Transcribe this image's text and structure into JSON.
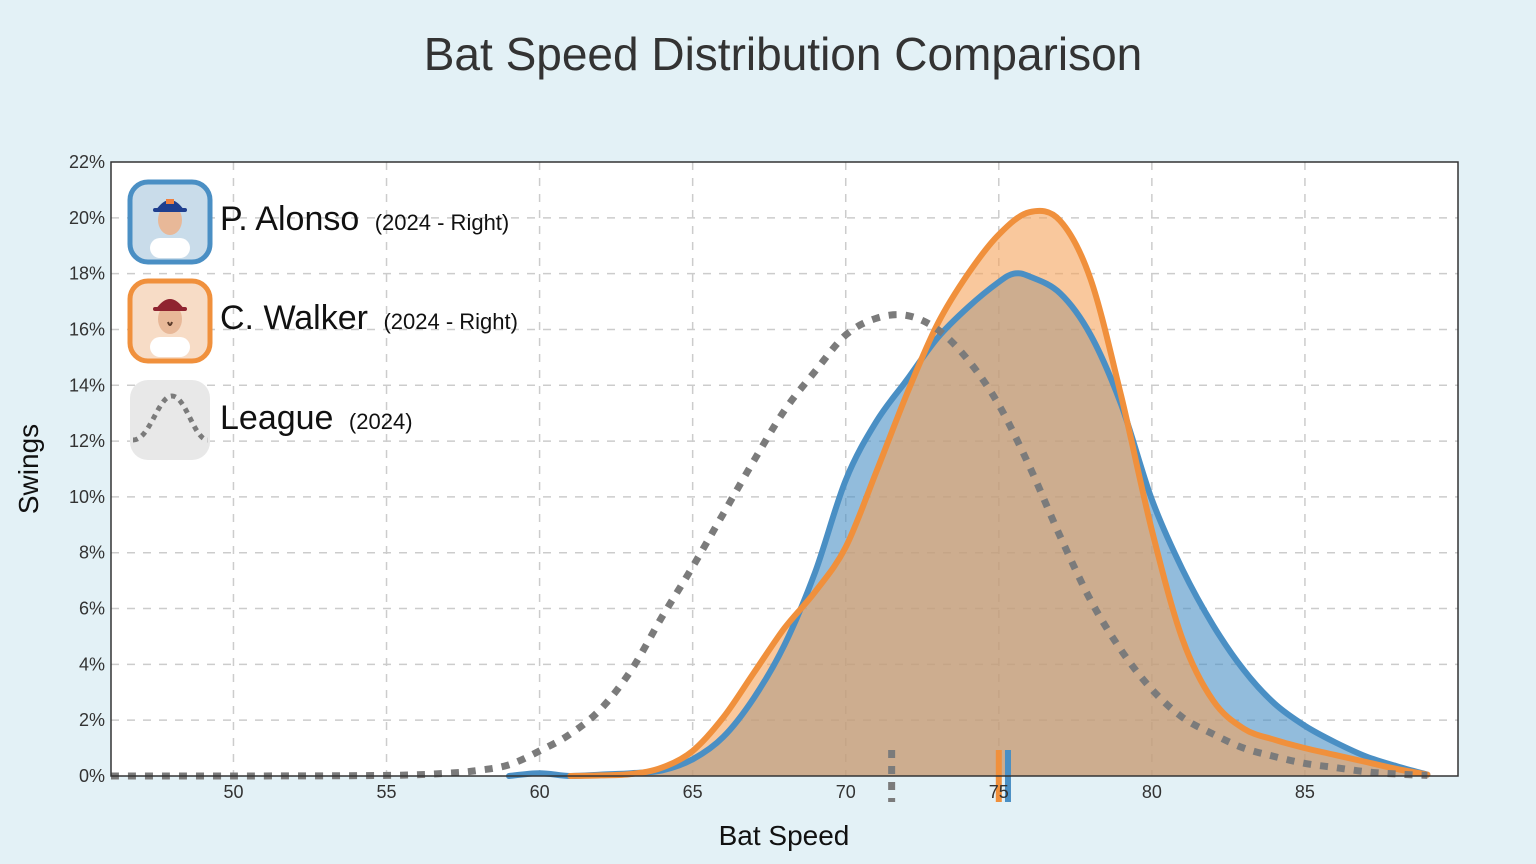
{
  "chart_data": {
    "type": "area",
    "title": "Bat Speed Distribution Comparison",
    "xlabel": "Bat Speed",
    "ylabel": "Swings",
    "xlim": [
      46,
      90
    ],
    "ylim": [
      0,
      22
    ],
    "x_ticks": [
      50,
      55,
      60,
      65,
      70,
      75,
      80,
      85
    ],
    "y_ticks": [
      0,
      2,
      4,
      6,
      8,
      10,
      12,
      14,
      16,
      18,
      20,
      22
    ],
    "y_tick_suffix": "%",
    "grid": true,
    "legend_position": "top-left",
    "series": [
      {
        "key": "alonso",
        "name": "P. Alonso",
        "detail": "(2024 - Right)",
        "color": "#4a8fc4",
        "fill": "#4a8fc4",
        "style": "filled",
        "mean_marker": 75.3,
        "points": [
          [
            59,
            0
          ],
          [
            60,
            0.1
          ],
          [
            61,
            0
          ],
          [
            62,
            0.05
          ],
          [
            63,
            0.1
          ],
          [
            64,
            0.2
          ],
          [
            65,
            0.6
          ],
          [
            66,
            1.4
          ],
          [
            67,
            2.8
          ],
          [
            68,
            4.7
          ],
          [
            69,
            7.3
          ],
          [
            70,
            10.6
          ],
          [
            71,
            12.7
          ],
          [
            72,
            14.2
          ],
          [
            73,
            15.7
          ],
          [
            74,
            16.8
          ],
          [
            75,
            17.7
          ],
          [
            75.5,
            18.0
          ],
          [
            76,
            17.9
          ],
          [
            77,
            17.3
          ],
          [
            78,
            15.8
          ],
          [
            79,
            13.3
          ],
          [
            80,
            9.9
          ],
          [
            81,
            7.4
          ],
          [
            82,
            5.4
          ],
          [
            83,
            3.8
          ],
          [
            84,
            2.6
          ],
          [
            85,
            1.8
          ],
          [
            86,
            1.2
          ],
          [
            87,
            0.7
          ],
          [
            88,
            0.35
          ],
          [
            89,
            0.05
          ]
        ]
      },
      {
        "key": "walker",
        "name": "C. Walker",
        "detail": "(2024 - Right)",
        "color": "#f0903c",
        "fill": "#f5a35c",
        "style": "filled",
        "mean_marker": 75.0,
        "points": [
          [
            61,
            0
          ],
          [
            62,
            0.02
          ],
          [
            63,
            0.07
          ],
          [
            64,
            0.3
          ],
          [
            65,
            0.9
          ],
          [
            66,
            2.1
          ],
          [
            67,
            3.7
          ],
          [
            68,
            5.3
          ],
          [
            69,
            6.6
          ],
          [
            70,
            8.2
          ],
          [
            71,
            10.9
          ],
          [
            72,
            13.7
          ],
          [
            73,
            16.2
          ],
          [
            74,
            18.0
          ],
          [
            75,
            19.4
          ],
          [
            76,
            20.2
          ],
          [
            77,
            19.9
          ],
          [
            78,
            17.8
          ],
          [
            79,
            13.6
          ],
          [
            80,
            8.8
          ],
          [
            81,
            4.9
          ],
          [
            82,
            2.7
          ],
          [
            83,
            1.7
          ],
          [
            84,
            1.3
          ],
          [
            85,
            1.0
          ],
          [
            86,
            0.75
          ],
          [
            87,
            0.5
          ],
          [
            88,
            0.25
          ],
          [
            89,
            0.05
          ]
        ]
      },
      {
        "key": "league",
        "name": "League",
        "detail": "(2024)",
        "color": "#7b7b7b",
        "style": "dotted",
        "mean_marker": 71.5,
        "points": [
          [
            46,
            0
          ],
          [
            50,
            0
          ],
          [
            55,
            0.02
          ],
          [
            57,
            0.1
          ],
          [
            58,
            0.2
          ],
          [
            59,
            0.4
          ],
          [
            60,
            0.9
          ],
          [
            61,
            1.5
          ],
          [
            62,
            2.4
          ],
          [
            63,
            3.8
          ],
          [
            64,
            5.7
          ],
          [
            65,
            7.5
          ],
          [
            66,
            9.4
          ],
          [
            67,
            11.3
          ],
          [
            68,
            13.1
          ],
          [
            69,
            14.5
          ],
          [
            70,
            15.8
          ],
          [
            71,
            16.4
          ],
          [
            72,
            16.5
          ],
          [
            73,
            16.0
          ],
          [
            74,
            14.9
          ],
          [
            75,
            13.3
          ],
          [
            76,
            11.1
          ],
          [
            77,
            8.6
          ],
          [
            78,
            6.3
          ],
          [
            79,
            4.5
          ],
          [
            80,
            3.1
          ],
          [
            81,
            2.1
          ],
          [
            82,
            1.5
          ],
          [
            83,
            1.0
          ],
          [
            84,
            0.7
          ],
          [
            85,
            0.45
          ],
          [
            86,
            0.3
          ],
          [
            87,
            0.15
          ],
          [
            88,
            0.07
          ],
          [
            89,
            0.02
          ]
        ]
      }
    ]
  }
}
